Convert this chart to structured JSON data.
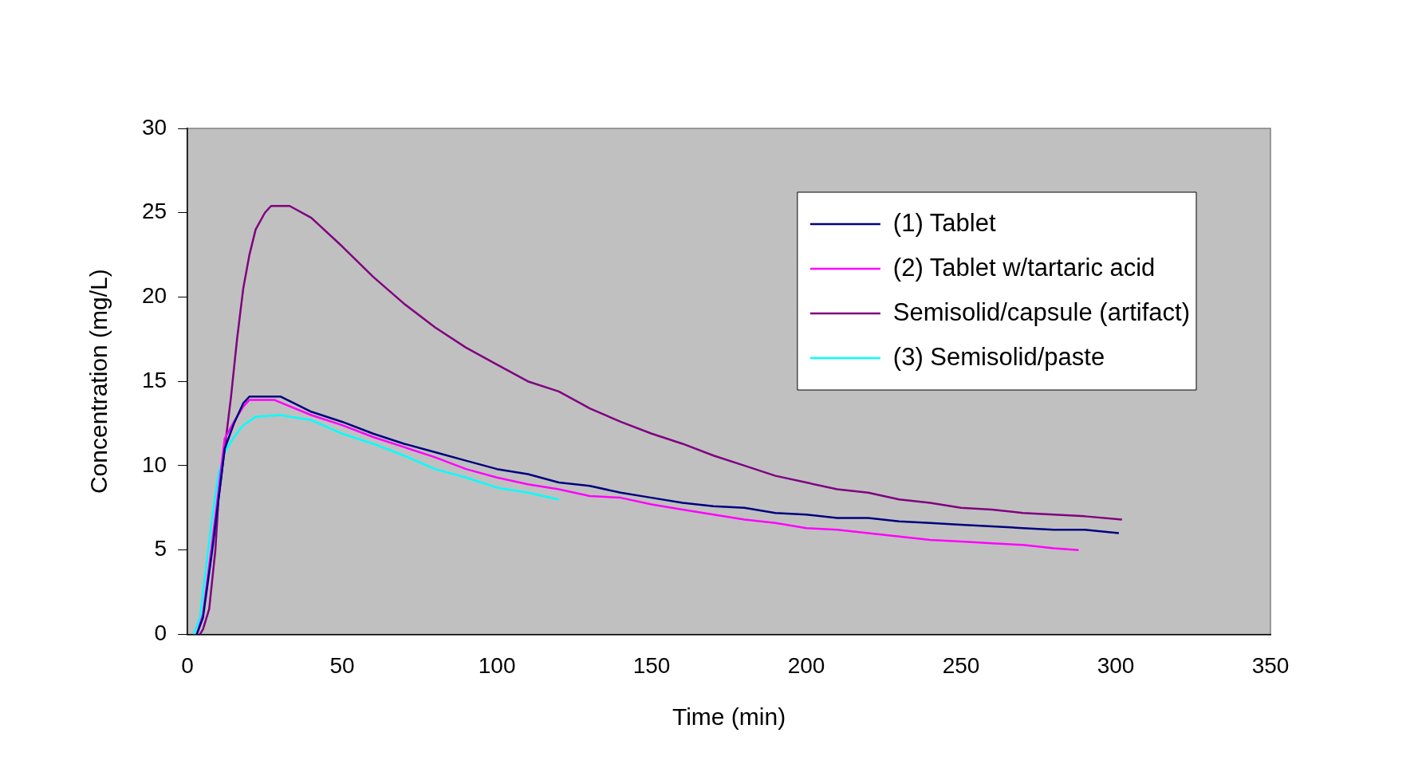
{
  "chart_data": {
    "type": "line",
    "xlabel": "Time (min)",
    "ylabel": "Concentration (mg/L)",
    "xlim": [
      0,
      350
    ],
    "xticks": [
      0,
      50,
      100,
      150,
      200,
      250,
      300,
      350
    ],
    "ylim": [
      0,
      30
    ],
    "yticks": [
      0,
      5,
      10,
      15,
      20,
      25,
      30
    ],
    "grid": false,
    "legend": "top right",
    "marker": "none",
    "line_style": "solid",
    "series": [
      {
        "name": "(1) Tablet",
        "color": "#000080",
        "x": [
          3,
          5,
          8,
          10,
          12,
          15,
          18,
          20,
          30,
          40,
          50,
          60,
          70,
          80,
          90,
          100,
          110,
          120,
          130,
          140,
          150,
          160,
          170,
          180,
          190,
          200,
          210,
          220,
          230,
          240,
          250,
          260,
          270,
          280,
          290,
          301
        ],
        "values": [
          0,
          1,
          5,
          8,
          11,
          12.5,
          13.7,
          14.1,
          14.1,
          13.2,
          12.6,
          11.9,
          11.3,
          10.8,
          10.3,
          9.8,
          9.5,
          9,
          8.8,
          8.4,
          8.1,
          7.8,
          7.6,
          7.5,
          7.2,
          7.1,
          6.9,
          6.9,
          6.7,
          6.6,
          6.5,
          6.4,
          6.3,
          6.2,
          6.2,
          6
        ]
      },
      {
        "name": "(2) Tablet w/tartaric acid",
        "color": "#ff00ff",
        "x": [
          3,
          5,
          8,
          10,
          12,
          15,
          18,
          20,
          28,
          40,
          50,
          60,
          70,
          80,
          90,
          100,
          110,
          120,
          130,
          140,
          150,
          160,
          170,
          180,
          190,
          200,
          210,
          220,
          230,
          240,
          250,
          260,
          270,
          280,
          288
        ],
        "values": [
          0,
          1.2,
          5.5,
          8.5,
          11.6,
          12.6,
          13.5,
          13.9,
          13.9,
          13,
          12.4,
          11.7,
          11.1,
          10.5,
          9.8,
          9.3,
          8.9,
          8.6,
          8.2,
          8.1,
          7.7,
          7.4,
          7.1,
          6.8,
          6.6,
          6.3,
          6.2,
          6,
          5.8,
          5.6,
          5.5,
          5.4,
          5.3,
          5.1,
          5
        ]
      },
      {
        "name": "Semisolid/capsule (artifact)",
        "color": "#800080",
        "x": [
          4,
          5,
          7,
          9,
          10,
          12,
          14,
          16,
          18,
          20,
          22,
          25,
          27,
          33,
          40,
          50,
          60,
          70,
          80,
          90,
          100,
          110,
          120,
          130,
          140,
          150,
          160,
          170,
          180,
          190,
          200,
          210,
          220,
          230,
          240,
          250,
          260,
          270,
          280,
          290,
          302
        ],
        "values": [
          0,
          0.3,
          1.5,
          5,
          8,
          11,
          14,
          17.5,
          20.5,
          22.5,
          24,
          25,
          25.4,
          25.4,
          24.7,
          23,
          21.2,
          19.6,
          18.2,
          17,
          16,
          15,
          14.4,
          13.4,
          12.6,
          11.9,
          11.3,
          10.6,
          10,
          9.4,
          9,
          8.6,
          8.4,
          8,
          7.8,
          7.5,
          7.4,
          7.2,
          7.1,
          7,
          6.8
        ]
      },
      {
        "name": "(3) Semisolid/paste",
        "color": "#00ffff",
        "x": [
          2,
          4,
          6,
          8,
          10,
          12,
          15,
          18,
          22,
          30,
          40,
          50,
          60,
          70,
          80,
          90,
          100,
          110,
          120
        ],
        "values": [
          0,
          1,
          4,
          7,
          9.5,
          10.8,
          11.7,
          12.4,
          12.9,
          13,
          12.7,
          11.9,
          11.3,
          10.6,
          9.8,
          9.3,
          8.7,
          8.4,
          8
        ]
      }
    ]
  }
}
